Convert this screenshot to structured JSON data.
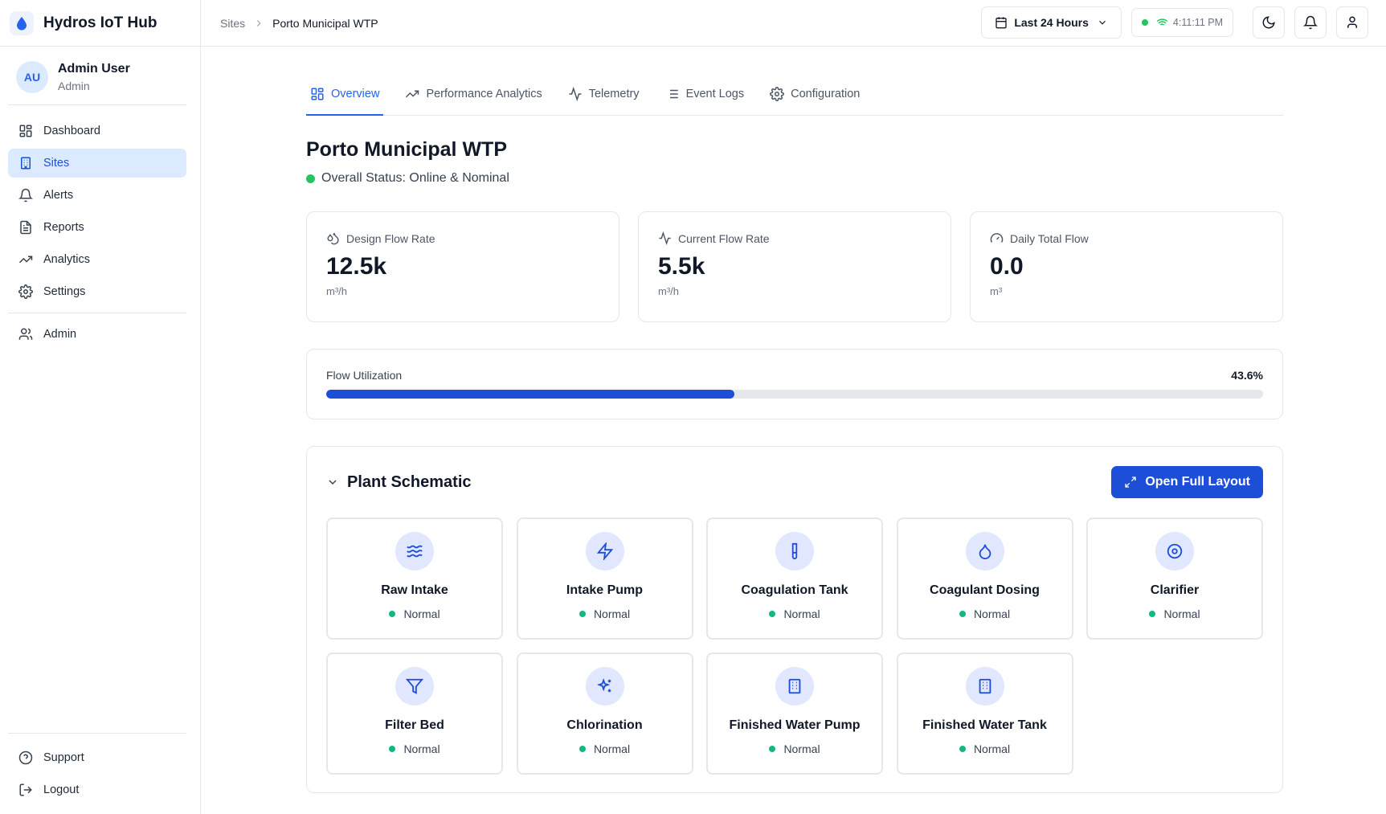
{
  "app": {
    "title": "Hydros IoT Hub"
  },
  "user": {
    "initials": "AU",
    "name": "Admin User",
    "role": "Admin"
  },
  "nav": {
    "items": [
      {
        "label": "Dashboard",
        "icon": "dashboard-icon"
      },
      {
        "label": "Sites",
        "icon": "building-icon",
        "active": true
      },
      {
        "label": "Alerts",
        "icon": "bell-icon"
      },
      {
        "label": "Reports",
        "icon": "file-text-icon"
      },
      {
        "label": "Analytics",
        "icon": "trending-up-icon"
      },
      {
        "label": "Settings",
        "icon": "gear-icon"
      }
    ],
    "admin": "Admin",
    "support": "Support",
    "logout": "Logout"
  },
  "breadcrumb": {
    "parent": "Sites",
    "current": "Porto Municipal WTP"
  },
  "header": {
    "time_range": "Last 24 Hours",
    "clock": "4:11:11 PM",
    "connection_color": "#22c55e"
  },
  "tabs": [
    {
      "label": "Overview",
      "icon": "grid-icon",
      "active": true
    },
    {
      "label": "Performance Analytics",
      "icon": "trending-up-icon"
    },
    {
      "label": "Telemetry",
      "icon": "activity-icon"
    },
    {
      "label": "Event Logs",
      "icon": "list-icon"
    },
    {
      "label": "Configuration",
      "icon": "gear-icon"
    }
  ],
  "site": {
    "title": "Porto Municipal WTP",
    "status": "Overall Status: Online & Nominal",
    "status_color": "#22c55e"
  },
  "metrics": {
    "design": {
      "label": "Design Flow Rate",
      "value": "12.5k",
      "unit": "m³/h",
      "icon": "droplets-icon"
    },
    "current": {
      "label": "Current Flow Rate",
      "value": "5.5k",
      "unit": "m³/h",
      "icon": "activity-icon"
    },
    "daily": {
      "label": "Daily Total Flow",
      "value": "0.0",
      "unit": "m³",
      "icon": "gauge-icon"
    }
  },
  "utilization": {
    "label": "Flow Utilization",
    "percent_text": "43.6%",
    "percent": 43.6
  },
  "schematic": {
    "title": "Plant Schematic",
    "open_button": "Open Full Layout",
    "accent": "#1d4ed8",
    "units": [
      {
        "name": "Raw Intake",
        "status": "Normal",
        "icon": "waves-icon"
      },
      {
        "name": "Intake Pump",
        "status": "Normal",
        "icon": "zap-icon"
      },
      {
        "name": "Coagulation Tank",
        "status": "Normal",
        "icon": "test-tube-icon"
      },
      {
        "name": "Coagulant Dosing",
        "status": "Normal",
        "icon": "droplet-icon"
      },
      {
        "name": "Clarifier",
        "status": "Normal",
        "icon": "target-icon"
      },
      {
        "name": "Filter Bed",
        "status": "Normal",
        "icon": "filter-icon"
      },
      {
        "name": "Chlorination",
        "status": "Normal",
        "icon": "sparkles-icon"
      },
      {
        "name": "Finished Water Pump",
        "status": "Normal",
        "icon": "building-icon"
      },
      {
        "name": "Finished Water Tank",
        "status": "Normal",
        "icon": "building-icon"
      }
    ]
  }
}
